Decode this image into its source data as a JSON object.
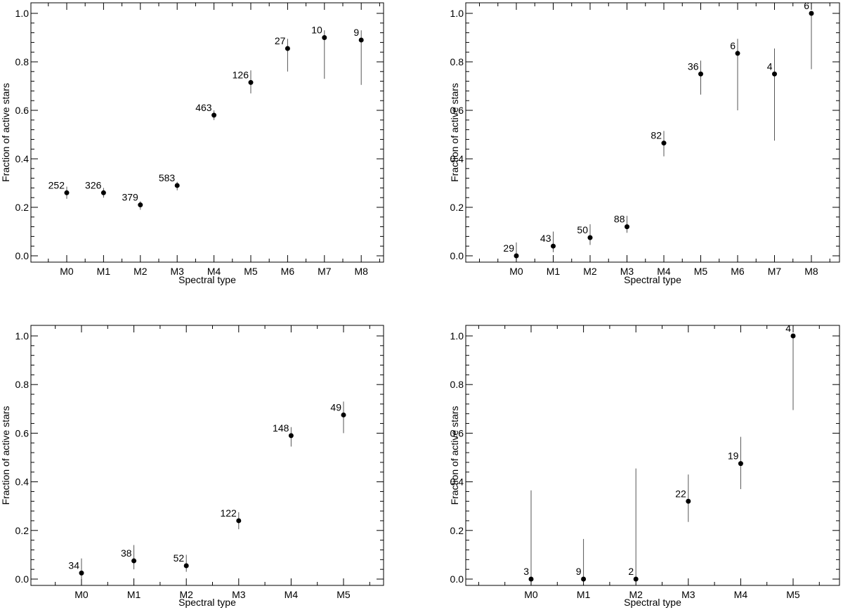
{
  "chart_data": [
    {
      "type": "scatter",
      "categories": [
        "M0",
        "M1",
        "M2",
        "M3",
        "M4",
        "M5",
        "M6",
        "M7",
        "M8"
      ],
      "values": [
        0.26,
        0.26,
        0.21,
        0.29,
        0.58,
        0.715,
        0.855,
        0.9,
        0.89
      ],
      "err_low": [
        0.235,
        0.24,
        0.19,
        0.27,
        0.56,
        0.67,
        0.76,
        0.73,
        0.705
      ],
      "err_high": [
        0.285,
        0.28,
        0.225,
        0.305,
        0.6,
        0.765,
        0.895,
        0.93,
        0.93
      ],
      "counts": [
        "252",
        "326",
        "379",
        "583",
        "463",
        "126",
        "27",
        "10",
        "9"
      ],
      "xlabel": "Spectral type",
      "ylabel": "Fraction of active stars",
      "ylim": [
        0,
        1.05
      ],
      "yticks": [
        "0.0",
        "0.2",
        "0.4",
        "0.6",
        "0.8",
        "1.0"
      ]
    },
    {
      "type": "scatter",
      "categories": [
        "M0",
        "M1",
        "M2",
        "M3",
        "M4",
        "M5",
        "M6",
        "M7",
        "M8"
      ],
      "values": [
        0.0,
        0.04,
        0.075,
        0.12,
        0.465,
        0.75,
        0.835,
        0.75,
        1.0
      ],
      "err_low": [
        0.0,
        0.015,
        0.045,
        0.095,
        0.41,
        0.665,
        0.6,
        0.475,
        0.77
      ],
      "err_high": [
        0.055,
        0.1,
        0.13,
        0.165,
        0.515,
        0.805,
        0.895,
        0.855,
        1.0
      ],
      "counts": [
        "29",
        "43",
        "50",
        "88",
        "82",
        "36",
        "6",
        "4",
        "6"
      ],
      "xlabel": "Spectral type",
      "ylabel": "Fraction of active stars",
      "ylim": [
        0,
        1.05
      ],
      "yticks": [
        "0.0",
        "0.2",
        "0.4",
        "0.6",
        "0.8",
        "1.0"
      ]
    },
    {
      "type": "scatter",
      "categories": [
        "M0",
        "M1",
        "M2",
        "M3",
        "M4",
        "M5"
      ],
      "values": [
        0.025,
        0.075,
        0.055,
        0.24,
        0.59,
        0.675
      ],
      "err_low": [
        0.0,
        0.04,
        0.03,
        0.205,
        0.545,
        0.6
      ],
      "err_high": [
        0.085,
        0.14,
        0.1,
        0.275,
        0.625,
        0.73
      ],
      "counts": [
        "34",
        "38",
        "52",
        "122",
        "148",
        "49"
      ],
      "xlabel": "Spectral type",
      "ylabel": "Fraction of active stars",
      "ylim": [
        0,
        1.05
      ],
      "yticks": [
        "0.0",
        "0.2",
        "0.4",
        "0.6",
        "0.8",
        "1.0"
      ]
    },
    {
      "type": "scatter",
      "categories": [
        "M0",
        "M1",
        "M2",
        "M3",
        "M4",
        "M5"
      ],
      "values": [
        0.0,
        0.0,
        0.0,
        0.32,
        0.475,
        1.0
      ],
      "err_low": [
        0.0,
        0.0,
        0.0,
        0.235,
        0.37,
        0.695
      ],
      "err_high": [
        0.365,
        0.165,
        0.455,
        0.43,
        0.585,
        1.0
      ],
      "counts": [
        "3",
        "9",
        "2",
        "22",
        "19",
        "4"
      ],
      "xlabel": "Spectral type",
      "ylabel": "Fraction of active stars",
      "ylim": [
        0,
        1.05
      ],
      "yticks": [
        "0.0",
        "0.2",
        "0.4",
        "0.6",
        "0.8",
        "1.0"
      ]
    }
  ]
}
